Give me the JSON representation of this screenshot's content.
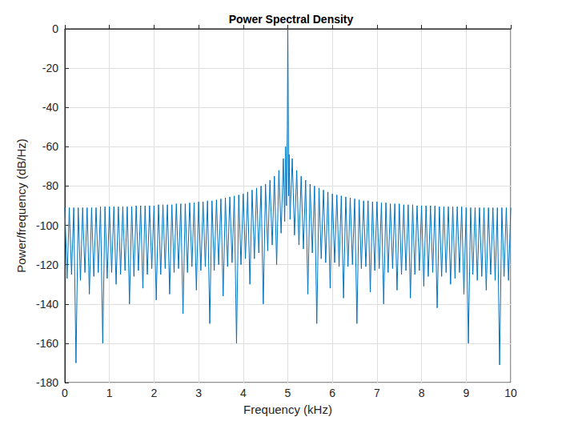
{
  "chart_data": {
    "type": "line",
    "title": "Power Spectral Density",
    "x_label": "Frequency (kHz)",
    "y_label": "Power/frequency (dB/Hz)",
    "xlim": [
      0,
      10
    ],
    "xticks": [
      0,
      1,
      2,
      3,
      4,
      5,
      6,
      7,
      8,
      9,
      10
    ],
    "ylim": [
      -180,
      0
    ],
    "yticks": [
      -180,
      -160,
      -140,
      -120,
      -100,
      -80,
      -60,
      -40,
      -20,
      0
    ],
    "grid": true,
    "color": "#0072bd",
    "x": [
      0,
      0.05,
      0.1,
      0.15,
      0.2,
      0.25,
      0.3,
      0.35,
      0.4,
      0.45,
      0.5,
      0.55,
      0.6,
      0.65,
      0.7,
      0.75,
      0.8,
      0.85,
      0.9,
      0.95,
      1,
      1.05,
      1.1,
      1.15,
      1.2,
      1.25,
      1.3,
      1.35,
      1.4,
      1.45,
      1.5,
      1.55,
      1.6,
      1.65,
      1.7,
      1.75,
      1.8,
      1.85,
      1.9,
      1.95,
      2,
      2.05,
      2.1,
      2.15,
      2.2,
      2.25,
      2.3,
      2.35,
      2.4,
      2.45,
      2.5,
      2.55,
      2.6,
      2.65,
      2.7,
      2.75,
      2.8,
      2.85,
      2.9,
      2.95,
      3,
      3.05,
      3.1,
      3.15,
      3.2,
      3.25,
      3.3,
      3.35,
      3.4,
      3.45,
      3.5,
      3.55,
      3.6,
      3.65,
      3.7,
      3.75,
      3.8,
      3.85,
      3.9,
      3.95,
      4,
      4.05,
      4.1,
      4.15,
      4.2,
      4.25,
      4.3,
      4.35,
      4.4,
      4.45,
      4.5,
      4.55,
      4.6,
      4.65,
      4.7,
      4.75,
      4.8,
      4.85,
      4.9,
      4.93,
      4.95,
      4.97,
      4.99,
      5,
      5.01,
      5.02,
      5.03,
      5.05,
      5.1,
      5.15,
      5.2,
      5.25,
      5.3,
      5.35,
      5.4,
      5.45,
      5.5,
      5.55,
      5.6,
      5.65,
      5.7,
      5.75,
      5.8,
      5.85,
      5.9,
      5.95,
      6,
      6.05,
      6.1,
      6.15,
      6.2,
      6.25,
      6.3,
      6.35,
      6.4,
      6.45,
      6.5,
      6.55,
      6.6,
      6.65,
      6.7,
      6.75,
      6.8,
      6.85,
      6.9,
      6.95,
      7,
      7.05,
      7.1,
      7.15,
      7.2,
      7.25,
      7.3,
      7.35,
      7.4,
      7.45,
      7.5,
      7.55,
      7.6,
      7.65,
      7.7,
      7.75,
      7.8,
      7.85,
      7.9,
      7.95,
      8,
      8.05,
      8.1,
      8.15,
      8.2,
      8.25,
      8.3,
      8.35,
      8.4,
      8.45,
      8.5,
      8.55,
      8.6,
      8.65,
      8.7,
      8.75,
      8.8,
      8.85,
      8.9,
      8.95,
      9,
      9.05,
      9.1,
      9.15,
      9.2,
      9.25,
      9.3,
      9.35,
      9.4,
      9.45,
      9.5,
      9.55,
      9.6,
      9.65,
      9.7,
      9.75,
      9.8,
      9.85,
      9.9,
      9.95,
      10
    ],
    "values": [
      -91,
      -127,
      -91,
      -125,
      -91,
      -170,
      -91,
      -128,
      -91,
      -124,
      -91,
      -135,
      -91,
      -126,
      -91,
      -124,
      -90.5,
      -160,
      -90.5,
      -127,
      -90.5,
      -124,
      -90.5,
      -130,
      -90.5,
      -125,
      -90.5,
      -123,
      -90.5,
      -140,
      -90.5,
      -126,
      -90,
      -123,
      -90,
      -132,
      -90,
      -125,
      -90,
      -122,
      -90,
      -138,
      -89.5,
      -125,
      -89.5,
      -122,
      -89.5,
      -135,
      -89.5,
      -124,
      -89,
      -122,
      -89,
      -145,
      -89,
      -124,
      -88.5,
      -121,
      -88.5,
      -133,
      -88,
      -123,
      -88,
      -121,
      -87.5,
      -150,
      -87.5,
      -123,
      -87,
      -120,
      -86.5,
      -136,
      -86,
      -121,
      -85.5,
      -119,
      -85,
      -160,
      -84.5,
      -120,
      -84,
      -117,
      -83,
      -130,
      -82,
      -117,
      -81,
      -114,
      -80,
      -140,
      -79,
      -113,
      -77,
      -110,
      -75,
      -120,
      -72,
      -104,
      -66,
      -98,
      -60,
      -90,
      -50,
      0,
      -36,
      -85,
      -64,
      -97,
      -66,
      -105,
      -72,
      -110,
      -75,
      -112,
      -77,
      -135,
      -79,
      -114,
      -80,
      -150,
      -81,
      -117,
      -82,
      -119,
      -83,
      -132,
      -84,
      -119,
      -84.5,
      -121,
      -85,
      -137,
      -85.5,
      -121,
      -86,
      -120,
      -86.5,
      -150,
      -87,
      -122,
      -87.5,
      -121,
      -87.5,
      -134,
      -88,
      -123,
      -88,
      -122,
      -88.5,
      -140,
      -88.5,
      -124,
      -89,
      -122,
      -89,
      -133,
      -89,
      -125,
      -89.5,
      -123,
      -89.5,
      -137,
      -89.5,
      -125,
      -90,
      -123,
      -90,
      -131,
      -90,
      -126,
      -90,
      -124,
      -90,
      -142,
      -90.5,
      -126,
      -90.5,
      -124,
      -90.5,
      -130,
      -90.5,
      -127,
      -90.5,
      -124,
      -90.5,
      -135,
      -91,
      -160,
      -91,
      -125,
      -91,
      -128,
      -91,
      -126,
      -91,
      -133,
      -91,
      -125,
      -91,
      -128,
      -91,
      -171,
      -91,
      -126,
      -91,
      -128,
      -91
    ]
  }
}
